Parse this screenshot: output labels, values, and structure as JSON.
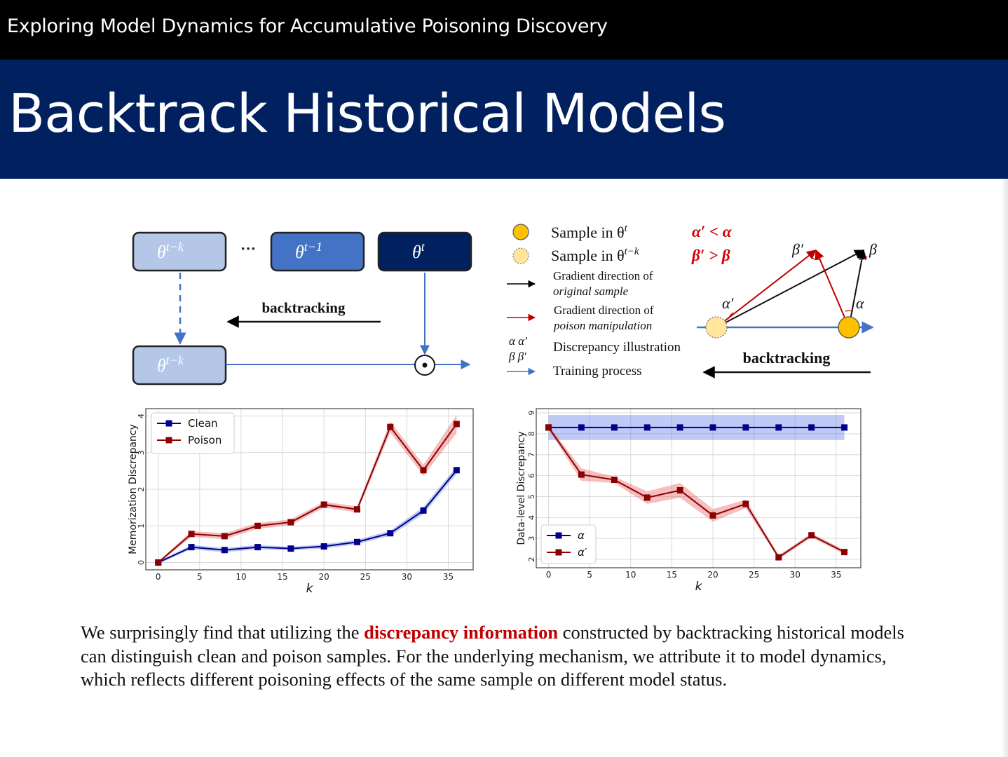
{
  "header": {
    "deck_title": "Exploring Model Dynamics for Accumulative Poisoning Discovery",
    "slide_title": "Backtrack Historical Models"
  },
  "colors": {
    "black_bar": "#000000",
    "banner": "#002060",
    "light_box": "#b4c7e7",
    "mid_box": "#4472c4",
    "dark_box": "#002060",
    "clean": "#00008b",
    "poison": "#8b0000",
    "highlight": "#c00000",
    "sample_t": "#ffc000",
    "sample_tk": "#ffe699"
  },
  "diagram": {
    "box_theta_tk": "θ",
    "box_theta_tk_sup": "t−k",
    "ellipsis": "···",
    "box_theta_t1": "θ",
    "box_theta_t1_sup": "t−1",
    "box_theta_t": "θ",
    "box_theta_t_sup": "t",
    "box_theta_tk_bottom": "θ",
    "box_theta_tk_bottom_sup": "t−k",
    "backtracking_label": "backtracking",
    "operator_symbol": "⊙"
  },
  "legend": {
    "sample_t": "Sample in θ",
    "sample_t_sup": "t",
    "sample_tk": "Sample in θ",
    "sample_tk_sup": "t−k",
    "grad_original_1": "Gradient  direction of",
    "grad_original_2": "original sample",
    "grad_poison_1": "Gradient  direction of",
    "grad_poison_2": "poison manipulation",
    "discrepancy_symbols_1": "α  α′",
    "discrepancy_symbols_2": "β  β′",
    "discrepancy": "Discrepancy illustration",
    "training": "Training process"
  },
  "geometry_diagram": {
    "inequality_1": "α′ < α",
    "inequality_2": "β′ > β",
    "label_beta_prime": "β′",
    "label_beta": "β",
    "label_alpha_prime": "α′",
    "label_alpha": "α",
    "backtracking_label": "backtracking"
  },
  "chart_data": [
    {
      "type": "line",
      "title": "",
      "xlabel": "k",
      "ylabel": "Memorization Discrepancy",
      "xlim": [
        -1.5,
        38
      ],
      "ylim": [
        -0.2,
        4.2
      ],
      "xticks": [
        0,
        5,
        10,
        15,
        20,
        25,
        30,
        35
      ],
      "yticks": [
        0,
        1,
        2,
        3,
        4
      ],
      "grid": true,
      "legend_position": "top-left",
      "x": [
        0,
        4,
        8,
        12,
        16,
        20,
        24,
        28,
        32,
        36
      ],
      "series": [
        {
          "name": "Clean",
          "color": "#00008b",
          "values": [
            0.0,
            0.42,
            0.34,
            0.42,
            0.38,
            0.44,
            0.56,
            0.8,
            1.42,
            2.52
          ],
          "band": [
            0.03,
            0.06,
            0.06,
            0.06,
            0.05,
            0.06,
            0.06,
            0.07,
            0.1,
            0.1
          ]
        },
        {
          "name": "Poison",
          "color": "#8b0000",
          "values": [
            0.0,
            0.78,
            0.72,
            1.0,
            1.1,
            1.58,
            1.45,
            3.7,
            2.52,
            3.78
          ],
          "band": [
            0.03,
            0.08,
            0.08,
            0.08,
            0.08,
            0.08,
            0.08,
            0.15,
            0.15,
            0.25
          ]
        }
      ]
    },
    {
      "type": "line",
      "title": "",
      "xlabel": "k",
      "ylabel": "Data-level Discrepancy",
      "xlim": [
        -1.5,
        38
      ],
      "ylim": [
        1.6,
        9.2
      ],
      "xticks": [
        0,
        5,
        10,
        15,
        20,
        25,
        30,
        35
      ],
      "yticks": [
        2,
        3,
        4,
        5,
        6,
        7,
        8,
        9
      ],
      "grid": true,
      "legend_position": "bottom-left",
      "x": [
        0,
        4,
        8,
        12,
        16,
        20,
        24,
        28,
        32,
        36
      ],
      "series": [
        {
          "name": "α",
          "color": "#00008b",
          "values": [
            8.3,
            8.3,
            8.3,
            8.3,
            8.3,
            8.3,
            8.3,
            8.3,
            8.3,
            8.3
          ],
          "band": [
            0.6,
            0.6,
            0.6,
            0.6,
            0.6,
            0.6,
            0.6,
            0.6,
            0.6,
            0.6
          ]
        },
        {
          "name": "α′",
          "color": "#8b0000",
          "values": [
            8.3,
            6.05,
            5.8,
            4.95,
            5.3,
            4.1,
            4.65,
            2.1,
            3.15,
            2.35
          ],
          "band": [
            0.1,
            0.3,
            0.15,
            0.3,
            0.35,
            0.3,
            0.2,
            0.1,
            0.1,
            0.1
          ]
        }
      ]
    }
  ],
  "caption": {
    "part1": "We surprisingly find that utilizing the ",
    "highlight": "discrepancy information",
    "part2": " constructed by backtracking historical models can distinguish clean and poison samples. For the underlying mechanism, we attribute it to model dynamics, which reflects different poisoning effects of the same sample on different model status."
  }
}
